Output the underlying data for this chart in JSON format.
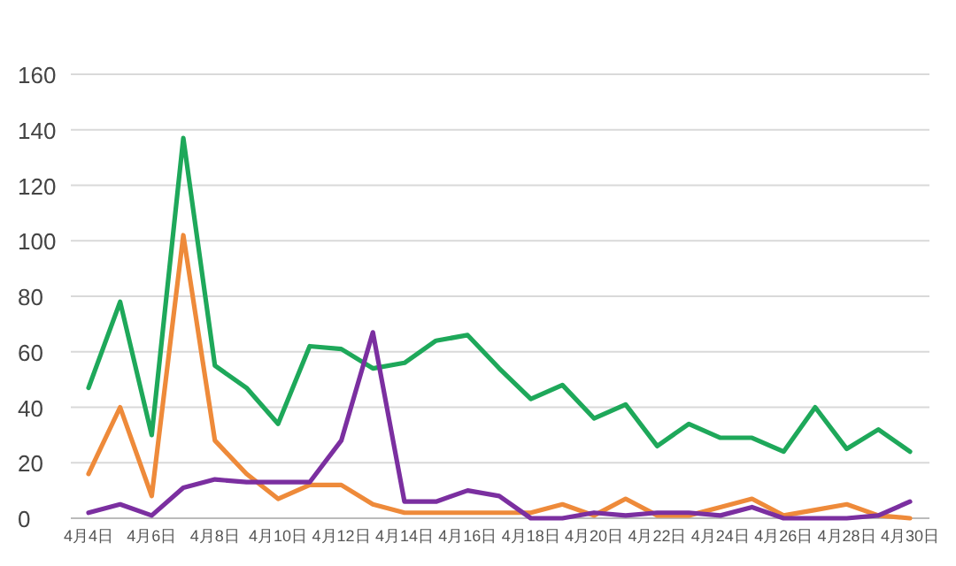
{
  "chart_data": {
    "type": "line",
    "categories": [
      "4月4日",
      null,
      "4月6日",
      null,
      "4月8日",
      null,
      "4月10日",
      null,
      "4月12日",
      null,
      "4月14日",
      null,
      "4月16日",
      null,
      "4月18日",
      null,
      "4月20日",
      null,
      "4月22日",
      null,
      "4月24日",
      null,
      "4月26日",
      null,
      "4月28日",
      null,
      "4月30日"
    ],
    "series": [
      {
        "color": "#1ea85a",
        "values": [
          47,
          78,
          30,
          137,
          55,
          47,
          34,
          62,
          61,
          54,
          56,
          64,
          66,
          54,
          43,
          48,
          36,
          41,
          26,
          34,
          29,
          29,
          24,
          40,
          25,
          32,
          24
        ]
      },
      {
        "color": "#ee8a3a",
        "values": [
          16,
          40,
          8,
          102,
          28,
          16,
          7,
          12,
          12,
          5,
          2,
          2,
          2,
          2,
          2,
          5,
          1,
          7,
          1,
          1,
          4,
          7,
          1,
          3,
          5,
          1,
          0
        ]
      },
      {
        "color": "#7b2fa0",
        "values": [
          2,
          5,
          1,
          11,
          14,
          13,
          13,
          13,
          28,
          67,
          6,
          6,
          10,
          8,
          0,
          0,
          2,
          1,
          2,
          2,
          1,
          4,
          0,
          0,
          0,
          1,
          6
        ]
      }
    ],
    "ylim": [
      0,
      160
    ],
    "yticks": [
      0,
      20,
      40,
      60,
      80,
      100,
      120,
      140,
      160
    ],
    "grid": "y"
  }
}
